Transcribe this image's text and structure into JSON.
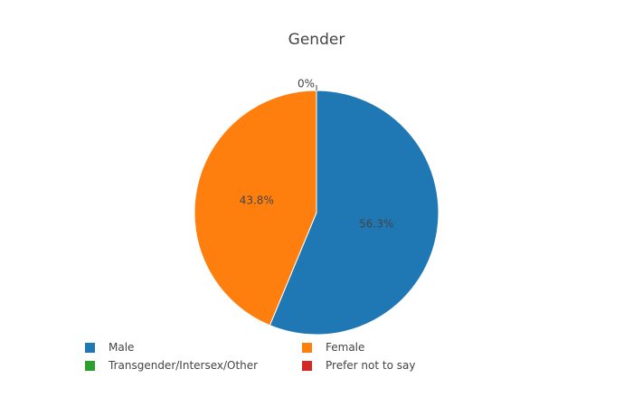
{
  "chart_data": {
    "type": "pie",
    "title": "Gender",
    "categories": [
      "Male",
      "Female",
      "Transgender/Intersex/Other",
      "Prefer not to say"
    ],
    "values": [
      56.3,
      43.8,
      0,
      0
    ],
    "slice_labels": [
      "56.3%",
      "43.8%",
      "0%",
      ""
    ],
    "colors": [
      "#1f77b4",
      "#ff7f0e",
      "#2ca02c",
      "#d62728"
    ],
    "legend": {
      "placement": "bottom",
      "entries": [
        "Male",
        "Female",
        "Transgender/Intersex/Other",
        "Prefer not to say"
      ]
    }
  }
}
